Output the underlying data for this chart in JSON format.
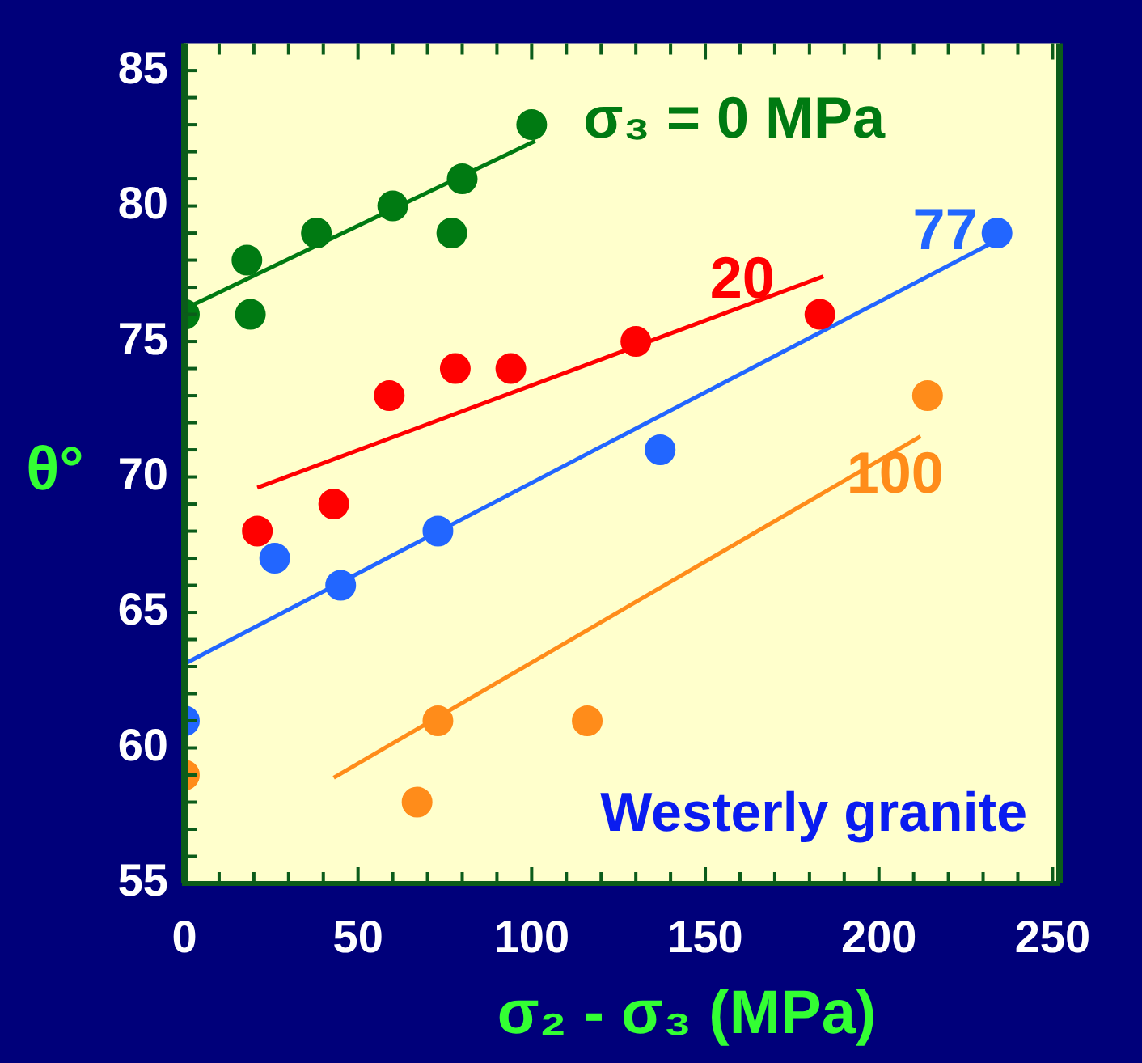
{
  "chart_data": {
    "type": "scatter",
    "xlabel": "σ₂ - σ₃ (MPa)",
    "ylabel": "θ°",
    "xlim": [
      0,
      252
    ],
    "ylim": [
      55,
      86
    ],
    "xticks": [
      0,
      {
        "value": 10,
        "label": null
      },
      {
        "value": 20,
        "label": null
      },
      {
        "value": 30,
        "label": null
      },
      {
        "value": 40,
        "label": null
      },
      50,
      {
        "value": 60,
        "label": null
      },
      {
        "value": 70,
        "label": null
      },
      {
        "value": 80,
        "label": null
      },
      {
        "value": 90,
        "label": null
      },
      100,
      {
        "value": 110,
        "label": null
      },
      {
        "value": 120,
        "label": null
      },
      {
        "value": 130,
        "label": null
      },
      {
        "value": 140,
        "label": null
      },
      150,
      {
        "value": 160,
        "label": null
      },
      {
        "value": 170,
        "label": null
      },
      {
        "value": 180,
        "label": null
      },
      {
        "value": 190,
        "label": null
      },
      200,
      {
        "value": 210,
        "label": null
      },
      {
        "value": 220,
        "label": null
      },
      {
        "value": 230,
        "label": null
      },
      {
        "value": 240,
        "label": null
      },
      250
    ],
    "yticks": [
      55,
      {
        "value": 56,
        "label": null
      },
      {
        "value": 57,
        "label": null
      },
      {
        "value": 58,
        "label": null
      },
      {
        "value": 59,
        "label": null
      },
      60,
      {
        "value": 61,
        "label": null
      },
      {
        "value": 62,
        "label": null
      },
      {
        "value": 63,
        "label": null
      },
      {
        "value": 64,
        "label": null
      },
      65,
      {
        "value": 66,
        "label": null
      },
      {
        "value": 67,
        "label": null
      },
      {
        "value": 68,
        "label": null
      },
      {
        "value": 69,
        "label": null
      },
      70,
      {
        "value": 71,
        "label": null
      },
      {
        "value": 72,
        "label": null
      },
      {
        "value": 73,
        "label": null
      },
      {
        "value": 74,
        "label": null
      },
      75,
      {
        "value": 76,
        "label": null
      },
      {
        "value": 77,
        "label": null
      },
      {
        "value": 78,
        "label": null
      },
      {
        "value": 79,
        "label": null
      },
      80,
      {
        "value": 81,
        "label": null
      },
      {
        "value": 82,
        "label": null
      },
      {
        "value": 83,
        "label": null
      },
      {
        "value": 84,
        "label": null
      },
      85
    ],
    "legend": false,
    "grid": false,
    "series": [
      {
        "name": "σ₃ = 0 MPa",
        "color": "#007a12",
        "marker": "circle",
        "x": [
          0,
          18,
          19,
          38,
          60,
          77,
          80,
          100
        ],
        "values": [
          76,
          78,
          76,
          79,
          80,
          79,
          81,
          83
        ]
      },
      {
        "name": "20",
        "color": "#ff0000",
        "marker": "circle",
        "x": [
          21,
          43,
          59,
          78,
          94,
          130,
          183
        ],
        "values": [
          68,
          69,
          73,
          74,
          74,
          75,
          76
        ]
      },
      {
        "name": "77",
        "color": "#2266ff",
        "marker": "circle",
        "x": [
          0,
          26,
          45,
          73,
          137,
          234
        ],
        "values": [
          61,
          67,
          66,
          68,
          71,
          79
        ]
      },
      {
        "name": "100",
        "color": "#ff8c1a",
        "marker": "circle",
        "x": [
          0,
          67,
          73,
          116,
          214
        ],
        "values": [
          59,
          58,
          61,
          61,
          73
        ]
      },
      {
        "type": "line",
        "marker": "none",
        "color": "#007a12",
        "x": [
          0,
          101
        ],
        "values": [
          76.2,
          82.4
        ]
      },
      {
        "type": "line",
        "marker": "none",
        "color": "#ff0000",
        "x": [
          21,
          184
        ],
        "values": [
          69.6,
          77.4
        ]
      },
      {
        "type": "line",
        "marker": "none",
        "color": "#2266ff",
        "x": [
          0,
          232
        ],
        "values": [
          63.1,
          78.6
        ]
      },
      {
        "type": "line",
        "marker": "none",
        "color": "#ff8c1a",
        "x": [
          43,
          212
        ],
        "values": [
          58.9,
          71.5
        ]
      }
    ],
    "annotations": [
      "Westerly granite"
    ]
  }
}
